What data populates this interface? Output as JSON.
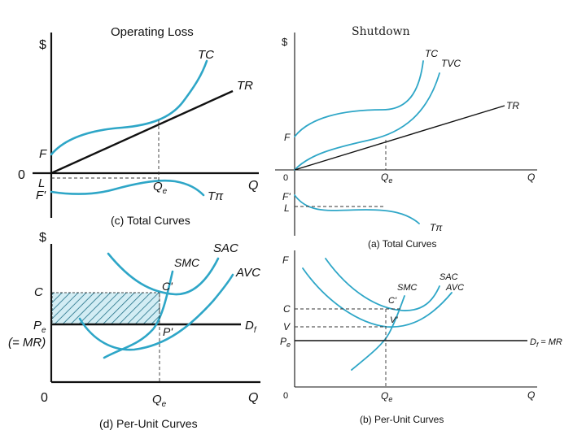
{
  "slide_title": "Shutdown",
  "panel_c": {
    "title": "Operating Loss",
    "caption": "(c) Total Curves",
    "y_axis": "$",
    "x_axis": "Q",
    "origin": "0",
    "labels": {
      "tc": "TC",
      "tr": "TR",
      "f": "F",
      "l": "L",
      "f_prime": "F'",
      "qe": "Q",
      "qe_sub": "e",
      "tpi": "Tπ"
    }
  },
  "panel_d": {
    "caption": "(d) Per-Unit Curves",
    "y_axis": "$",
    "x_axis": "Q",
    "origin": "0",
    "labels": {
      "sac": "SAC",
      "smc": "SMC",
      "avc": "AVC",
      "c": "C",
      "c_prime": "C'",
      "pe": "P",
      "pe_sub": "e",
      "mr": "(= MR)",
      "p_prime": "P'",
      "df": "D",
      "df_sub": "f",
      "qe": "Q",
      "qe_sub": "e"
    }
  },
  "panel_a": {
    "caption": "(a) Total Curves",
    "y_axis": "$",
    "x_axis": "Q",
    "origin": "0",
    "labels": {
      "tc": "TC",
      "tvc": "TVC",
      "tr": "TR",
      "f": "F",
      "f_prime": "F'",
      "l": "L",
      "qe": "Q",
      "qe_sub": "e",
      "tpi": "Tπ"
    }
  },
  "panel_b": {
    "caption": "(b) Per-Unit Curves",
    "y_axis": "F",
    "x_axis": "Q",
    "origin": "0",
    "labels": {
      "sac": "SAC",
      "smc": "SMC",
      "avc": "AVC",
      "c": "C",
      "c_prime": "C'",
      "v": "V",
      "v_prime": "V'",
      "pe": "P",
      "pe_sub": "e",
      "df": "D",
      "df_sub": "f",
      "mr": " = MR",
      "qe": "Q",
      "qe_sub": "e"
    }
  },
  "colors": {
    "curve": "#2ea6c7",
    "axis": "#111111",
    "hatch": "#2ea6c7",
    "hatch_fill": "#cdeaf2"
  }
}
